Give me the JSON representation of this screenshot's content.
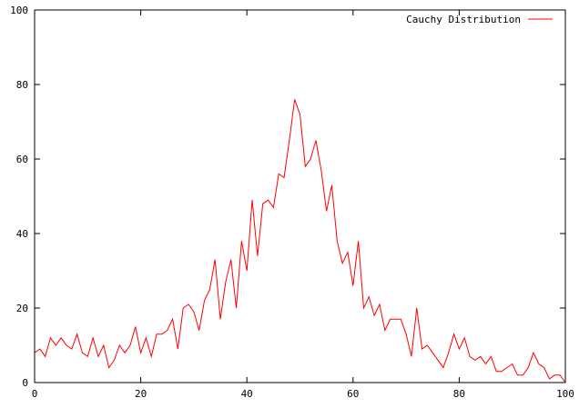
{
  "chart_data": {
    "type": "line",
    "title": "",
    "xlabel": "",
    "ylabel": "",
    "xlim": [
      0,
      100
    ],
    "ylim": [
      0,
      100
    ],
    "x_ticks": [
      "0",
      "20",
      "40",
      "60",
      "80",
      "100"
    ],
    "y_ticks": [
      "0",
      "20",
      "40",
      "60",
      "80",
      "100"
    ],
    "grid": false,
    "legend_position": "top-right",
    "series": [
      {
        "name": "Cauchy Distribution",
        "color": "#ff0000",
        "x": [
          0,
          1,
          2,
          3,
          4,
          5,
          6,
          7,
          8,
          9,
          10,
          11,
          12,
          13,
          14,
          15,
          16,
          17,
          18,
          19,
          20,
          21,
          22,
          23,
          24,
          25,
          26,
          27,
          28,
          29,
          30,
          31,
          32,
          33,
          34,
          35,
          36,
          37,
          38,
          39,
          40,
          41,
          42,
          43,
          44,
          45,
          46,
          47,
          48,
          49,
          50,
          51,
          52,
          53,
          54,
          55,
          56,
          57,
          58,
          59,
          60,
          61,
          62,
          63,
          64,
          65,
          66,
          67,
          68,
          69,
          70,
          71,
          72,
          73,
          74,
          75,
          76,
          77,
          78,
          79,
          80,
          81,
          82,
          83,
          84,
          85,
          86,
          87,
          88,
          89,
          90,
          91,
          92,
          93,
          94,
          95,
          96,
          97,
          98,
          99,
          100
        ],
        "y": [
          8,
          9,
          7,
          12,
          10,
          12,
          10,
          9,
          13,
          8,
          7,
          12,
          7,
          10,
          4,
          6,
          10,
          8,
          10,
          15,
          8,
          12,
          7,
          13,
          13,
          14,
          17,
          9,
          20,
          21,
          19,
          14,
          22,
          25,
          33,
          17,
          27,
          33,
          20,
          38,
          30,
          49,
          34,
          48,
          49,
          47,
          56,
          55,
          65,
          76,
          72,
          58,
          60,
          65,
          57,
          46,
          53,
          38,
          32,
          35,
          26,
          38,
          20,
          23,
          18,
          21,
          14,
          17,
          17,
          17,
          13,
          7,
          20,
          9,
          10,
          8,
          6,
          4,
          8,
          13,
          9,
          12,
          7,
          6,
          7,
          5,
          7,
          3,
          3,
          4,
          5,
          2,
          2,
          4,
          8,
          5,
          4,
          1,
          2,
          2,
          0
        ]
      }
    ]
  }
}
